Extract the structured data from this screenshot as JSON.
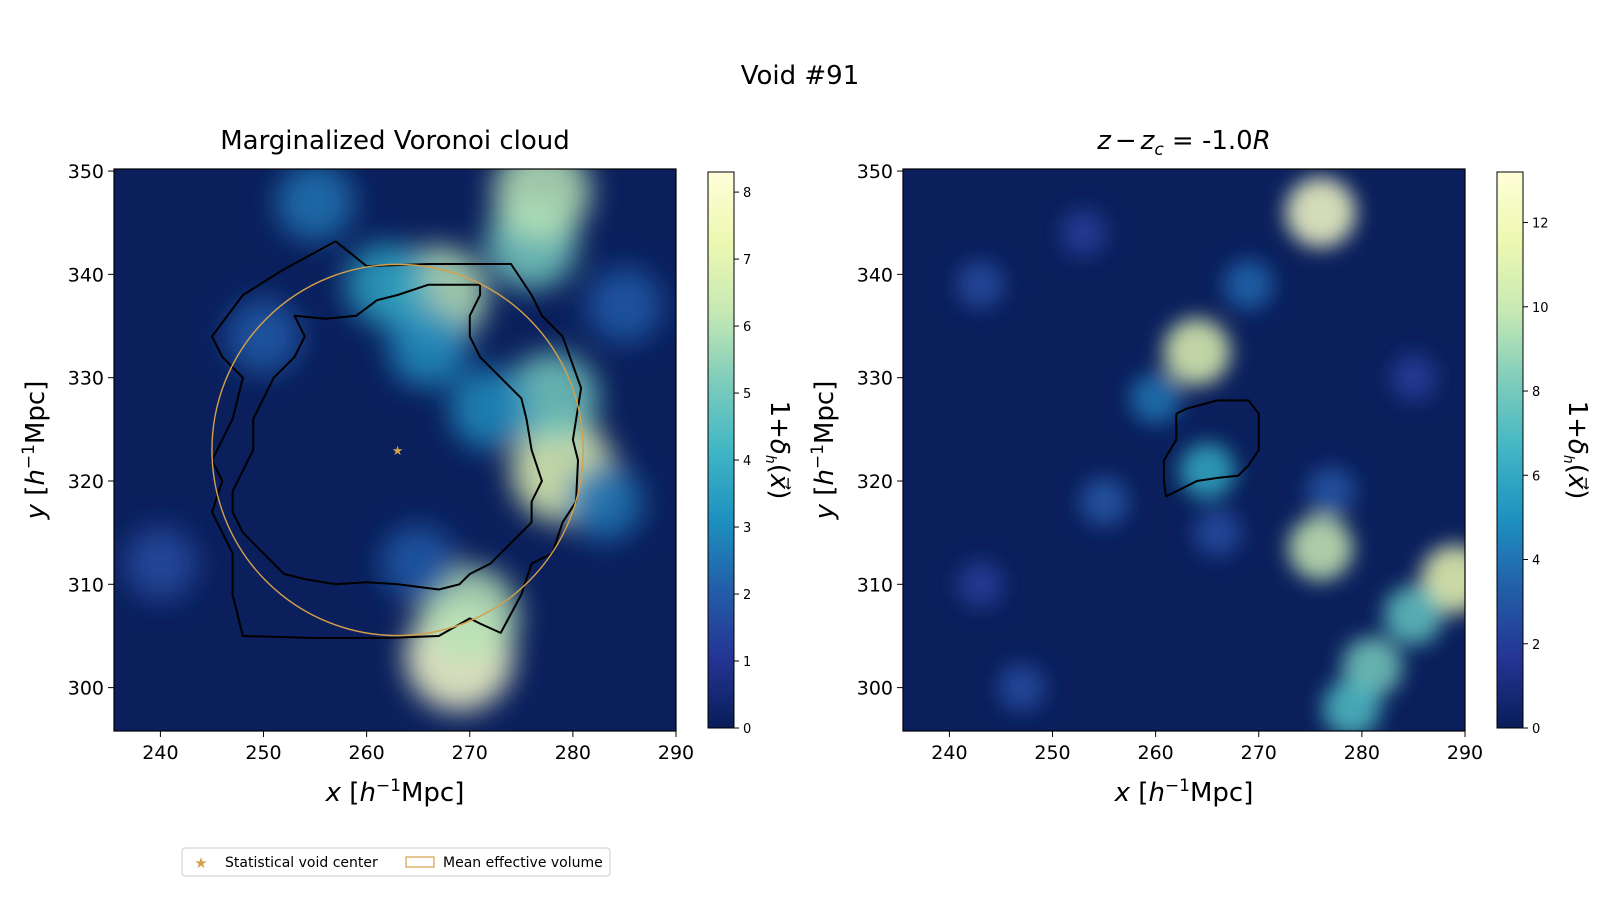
{
  "figure": {
    "suptitle": "Void #91"
  },
  "chart_data": [
    {
      "type": "heatmap",
      "title": "Marginalized Voronoi cloud",
      "xlabel": "x [h⁻¹Mpc]",
      "ylabel": "y [h⁻¹Mpc]",
      "xlim": [
        235.5,
        290
      ],
      "ylim": [
        295.8,
        350.2
      ],
      "xticks": [
        240,
        250,
        260,
        270,
        280,
        290
      ],
      "yticks": [
        300,
        310,
        320,
        330,
        340,
        350
      ],
      "colorbar": {
        "label": "1+δh(x⃗)",
        "range": [
          0,
          8.3
        ],
        "ticks": [
          0,
          1,
          2,
          3,
          4,
          5,
          6,
          7,
          8
        ]
      },
      "colormap": [
        "#081d58",
        "#253494",
        "#225ea8",
        "#1d91c0",
        "#41b6c4",
        "#7fcdbb",
        "#c7e9b4",
        "#edf8b1",
        "#ffffd9"
      ],
      "density_features": [
        {
          "x": 269,
          "y": 303,
          "value": 8.0
        },
        {
          "x": 270,
          "y": 307,
          "value": 6.0
        },
        {
          "x": 279,
          "y": 321,
          "value": 7.0
        },
        {
          "x": 278,
          "y": 328,
          "value": 5.0
        },
        {
          "x": 267,
          "y": 338,
          "value": 6.0
        },
        {
          "x": 262,
          "y": 339,
          "value": 3.5
        },
        {
          "x": 276,
          "y": 343,
          "value": 5.0
        },
        {
          "x": 277,
          "y": 348,
          "value": 6.0
        },
        {
          "x": 266,
          "y": 333,
          "value": 3.0
        },
        {
          "x": 272,
          "y": 327,
          "value": 3.0
        },
        {
          "x": 255,
          "y": 347,
          "value": 2.5
        },
        {
          "x": 250,
          "y": 334,
          "value": 2.0
        },
        {
          "x": 240,
          "y": 312,
          "value": 1.6
        },
        {
          "x": 265,
          "y": 312,
          "value": 2.0
        },
        {
          "x": 283,
          "y": 318,
          "value": 2.5
        },
        {
          "x": 285,
          "y": 337,
          "value": 2.0
        }
      ],
      "contours": [
        [
          [
            257,
            343.2
          ],
          [
            252,
            340.5
          ],
          [
            248,
            338
          ],
          [
            245,
            334
          ],
          [
            246,
            332
          ],
          [
            248,
            330
          ],
          [
            247,
            326
          ],
          [
            246,
            324
          ],
          [
            245,
            322
          ],
          [
            246,
            320
          ],
          [
            245,
            317
          ],
          [
            246,
            315
          ],
          [
            247,
            313
          ],
          [
            247,
            311
          ],
          [
            247,
            309
          ],
          [
            248,
            305
          ],
          [
            255,
            304.8
          ],
          [
            262,
            304.8
          ],
          [
            267,
            305
          ],
          [
            270,
            306.7
          ],
          [
            271,
            306.2
          ],
          [
            273,
            305.3
          ],
          [
            275,
            309
          ],
          [
            276,
            312
          ],
          [
            278,
            313
          ],
          [
            279,
            316
          ],
          [
            280.3,
            318
          ],
          [
            280.5,
            322
          ],
          [
            280,
            324
          ],
          [
            280.8,
            329
          ],
          [
            279,
            334
          ],
          [
            277,
            336
          ],
          [
            276,
            338
          ],
          [
            274,
            341
          ],
          [
            266,
            341
          ],
          [
            260,
            340.8
          ],
          [
            257,
            343.2
          ]
        ],
        [
          [
            266,
            339
          ],
          [
            263,
            338
          ],
          [
            261,
            337.5
          ],
          [
            259,
            336
          ],
          [
            256,
            335.7
          ],
          [
            253,
            336
          ],
          [
            254,
            334
          ],
          [
            253,
            332
          ],
          [
            251,
            330
          ],
          [
            250,
            328
          ],
          [
            249,
            326
          ],
          [
            249,
            323
          ],
          [
            248,
            321
          ],
          [
            247,
            319
          ],
          [
            247,
            317
          ],
          [
            248,
            315
          ],
          [
            250,
            313
          ],
          [
            252,
            311
          ],
          [
            254,
            310.5
          ],
          [
            257,
            310
          ],
          [
            260,
            310.2
          ],
          [
            263,
            310
          ],
          [
            267,
            309.5
          ],
          [
            269,
            310
          ],
          [
            270,
            311
          ],
          [
            272,
            312
          ],
          [
            274,
            314
          ],
          [
            276,
            316
          ],
          [
            276,
            318
          ],
          [
            277,
            320
          ],
          [
            276,
            323
          ],
          [
            275.5,
            326
          ],
          [
            275,
            328
          ],
          [
            273,
            330
          ],
          [
            271,
            332
          ],
          [
            270,
            334
          ],
          [
            270,
            336
          ],
          [
            271,
            338
          ],
          [
            271,
            339
          ],
          [
            268,
            339
          ],
          [
            266,
            339
          ]
        ]
      ],
      "circle": {
        "cx": 263,
        "cy": 323,
        "r": 18
      },
      "star": {
        "x": 263,
        "y": 323
      }
    },
    {
      "type": "heatmap",
      "title_parts": {
        "z": "z",
        "minus": "−",
        "zc": "z",
        "sub": "c",
        "eq": " = -1.0",
        "R": "R"
      },
      "xlabel": "x [h⁻¹Mpc]",
      "ylabel": "y [h⁻¹Mpc]",
      "xlim": [
        235.5,
        290
      ],
      "ylim": [
        295.8,
        350.2
      ],
      "xticks": [
        240,
        250,
        260,
        270,
        280,
        290
      ],
      "yticks": [
        300,
        310,
        320,
        330,
        340,
        350
      ],
      "colorbar": {
        "label": "1+δh(x⃗)",
        "range": [
          0,
          13.2
        ],
        "ticks": [
          0,
          2,
          4,
          6,
          8,
          10,
          12
        ]
      },
      "colormap": [
        "#081d58",
        "#253494",
        "#225ea8",
        "#1d91c0",
        "#41b6c4",
        "#7fcdbb",
        "#c7e9b4",
        "#edf8b1",
        "#ffffd9"
      ],
      "density_features": [
        {
          "x": 276,
          "y": 346,
          "value": 12.5
        },
        {
          "x": 264,
          "y": 332.5,
          "value": 11.0
        },
        {
          "x": 276,
          "y": 313.5,
          "value": 10.0
        },
        {
          "x": 265,
          "y": 321,
          "value": 6.0
        },
        {
          "x": 289,
          "y": 310.5,
          "value": 11.5
        },
        {
          "x": 285,
          "y": 307,
          "value": 7.5
        },
        {
          "x": 281,
          "y": 302,
          "value": 8.0
        },
        {
          "x": 279,
          "y": 298,
          "value": 7.0
        },
        {
          "x": 269,
          "y": 339,
          "value": 3.5
        },
        {
          "x": 260,
          "y": 328,
          "value": 4.0
        },
        {
          "x": 255,
          "y": 318,
          "value": 3.0
        },
        {
          "x": 266,
          "y": 315,
          "value": 2.5
        },
        {
          "x": 277,
          "y": 319,
          "value": 3.0
        },
        {
          "x": 243,
          "y": 339,
          "value": 2.5
        },
        {
          "x": 247,
          "y": 300,
          "value": 2.5
        },
        {
          "x": 253,
          "y": 344,
          "value": 2.0
        },
        {
          "x": 285,
          "y": 330,
          "value": 2.0
        },
        {
          "x": 243,
          "y": 310,
          "value": 2.0
        }
      ],
      "contours": [
        [
          [
            262,
            326.5
          ],
          [
            263,
            327
          ],
          [
            266,
            327.8
          ],
          [
            269,
            327.8
          ],
          [
            270,
            326.5
          ],
          [
            270,
            323
          ],
          [
            269,
            321.5
          ],
          [
            268,
            320.5
          ],
          [
            266,
            320.3
          ],
          [
            264,
            320
          ],
          [
            262,
            319
          ],
          [
            261,
            318.5
          ],
          [
            260.8,
            320
          ],
          [
            260.8,
            322
          ],
          [
            262,
            324
          ],
          [
            262,
            326.5
          ]
        ]
      ]
    }
  ],
  "legend": {
    "items": [
      {
        "label": "Statistical void center",
        "marker": "star"
      },
      {
        "label": "Mean effective volume",
        "marker": "rect"
      }
    ]
  },
  "colors": {
    "accent": "#d4a04a",
    "contour": "#000000"
  }
}
